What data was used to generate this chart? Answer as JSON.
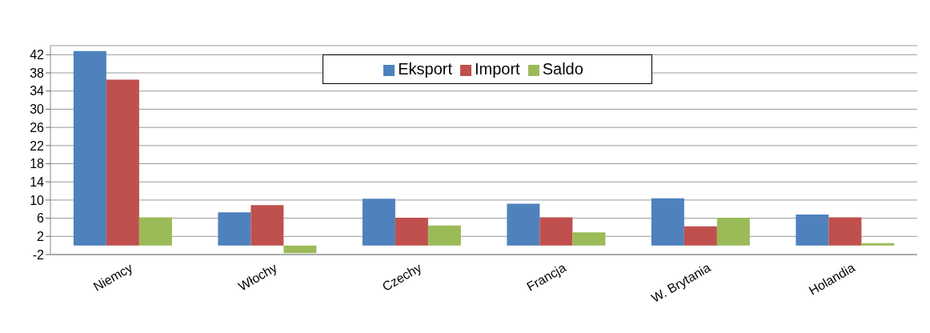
{
  "chart_data": {
    "type": "bar",
    "categories": [
      "Niemcy",
      "Włochy",
      "Czechy",
      "Francja",
      "W. Brytania",
      "Holandia"
    ],
    "series": [
      {
        "name": "Eksport",
        "color": "#4f81bd",
        "values": [
          42.8,
          7.3,
          10.3,
          9.2,
          10.4,
          6.8
        ]
      },
      {
        "name": "Import",
        "color": "#c0504d",
        "values": [
          36.5,
          8.9,
          6.1,
          6.2,
          4.2,
          6.2
        ]
      },
      {
        "name": "Saldo",
        "color": "#9bbb59",
        "values": [
          6.2,
          -1.7,
          4.4,
          2.9,
          6.1,
          0.5
        ]
      }
    ],
    "ylim": [
      -2,
      44
    ],
    "yticks": [
      -2,
      2,
      6,
      10,
      14,
      18,
      22,
      26,
      30,
      34,
      38,
      42
    ],
    "grid": "y",
    "legend": "top"
  }
}
